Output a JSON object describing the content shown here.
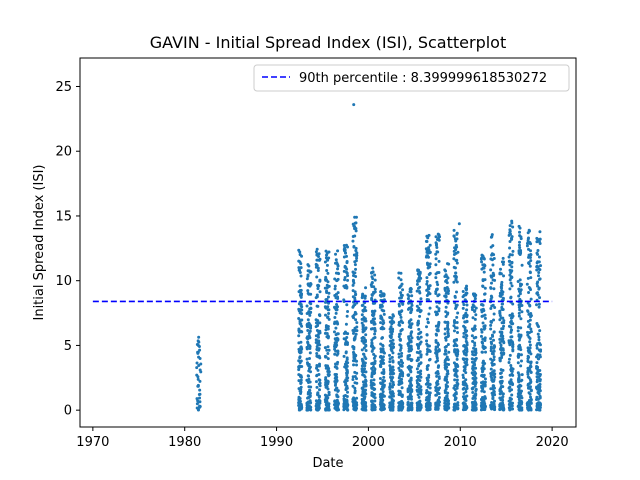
{
  "chart_data": {
    "type": "scatter",
    "title": "GAVIN - Initial Spread Index (ISI), Scatterplot",
    "xlabel": "Date",
    "ylabel": "Initial Spread Index (ISI)",
    "xlim": [
      1968.6,
      2022.6
    ],
    "ylim": [
      -1.3,
      27.2
    ],
    "x_ticks": [
      1970,
      1980,
      1990,
      2000,
      2010,
      2020
    ],
    "y_ticks": [
      0,
      5,
      10,
      15,
      20,
      25
    ],
    "grid": false,
    "legend_position": "top-right",
    "point_color": "#1f77b4",
    "reference_line": {
      "label": "90th percentile : 8.399999618530272",
      "value": 8.399999618530272,
      "x_range": [
        1970,
        2020
      ],
      "color": "#0000ff",
      "style": "dashed"
    },
    "season_ranges": [
      {
        "start": 1981.3,
        "end": 1981.75
      },
      {
        "start": 1992.4,
        "end": 1992.75
      },
      {
        "start": 1993.3,
        "end": 1993.75
      },
      {
        "start": 1994.3,
        "end": 1994.75
      },
      {
        "start": 1995.3,
        "end": 1995.75
      },
      {
        "start": 1996.3,
        "end": 1996.75
      },
      {
        "start": 1997.3,
        "end": 1997.75
      },
      {
        "start": 1998.3,
        "end": 1998.75
      },
      {
        "start": 1999.3,
        "end": 1999.75
      },
      {
        "start": 2000.3,
        "end": 2000.75
      },
      {
        "start": 2001.3,
        "end": 2001.75
      },
      {
        "start": 2002.3,
        "end": 2002.75
      },
      {
        "start": 2003.3,
        "end": 2003.75
      },
      {
        "start": 2004.3,
        "end": 2004.75
      },
      {
        "start": 2005.3,
        "end": 2005.75
      },
      {
        "start": 2006.3,
        "end": 2006.75
      },
      {
        "start": 2007.3,
        "end": 2007.75
      },
      {
        "start": 2008.3,
        "end": 2008.75
      },
      {
        "start": 2009.3,
        "end": 2009.75
      },
      {
        "start": 2010.3,
        "end": 2010.75
      },
      {
        "start": 2011.3,
        "end": 2011.75
      },
      {
        "start": 2012.3,
        "end": 2012.75
      },
      {
        "start": 2013.3,
        "end": 2013.75
      },
      {
        "start": 2014.3,
        "end": 2014.75
      },
      {
        "start": 2015.3,
        "end": 2015.75
      },
      {
        "start": 2016.3,
        "end": 2016.75
      },
      {
        "start": 2017.3,
        "end": 2017.75
      },
      {
        "start": 2018.3,
        "end": 2018.75
      }
    ],
    "season_maxima": [
      6.0,
      12.5,
      11.3,
      12.5,
      12.3,
      12.4,
      13.0,
      14.9,
      9.5,
      11.0,
      9.5,
      7.4,
      10.6,
      9.6,
      11.1,
      13.6,
      13.7,
      11.5,
      14.3,
      9.6,
      9.2,
      12.1,
      14.0,
      11.8,
      14.6,
      14.2,
      13.9,
      13.8
    ],
    "notable_points": [
      {
        "x": 1998.4,
        "y": 23.6
      },
      {
        "x": 1998.5,
        "y": 14.9
      },
      {
        "x": 2009.9,
        "y": 14.4
      },
      {
        "x": 2015.6,
        "y": 14.6
      },
      {
        "x": 2007.6,
        "y": 13.6
      },
      {
        "x": 2006.6,
        "y": 13.5
      },
      {
        "x": 2016.4,
        "y": 14.2
      },
      {
        "x": 2017.5,
        "y": 13.9
      }
    ]
  }
}
